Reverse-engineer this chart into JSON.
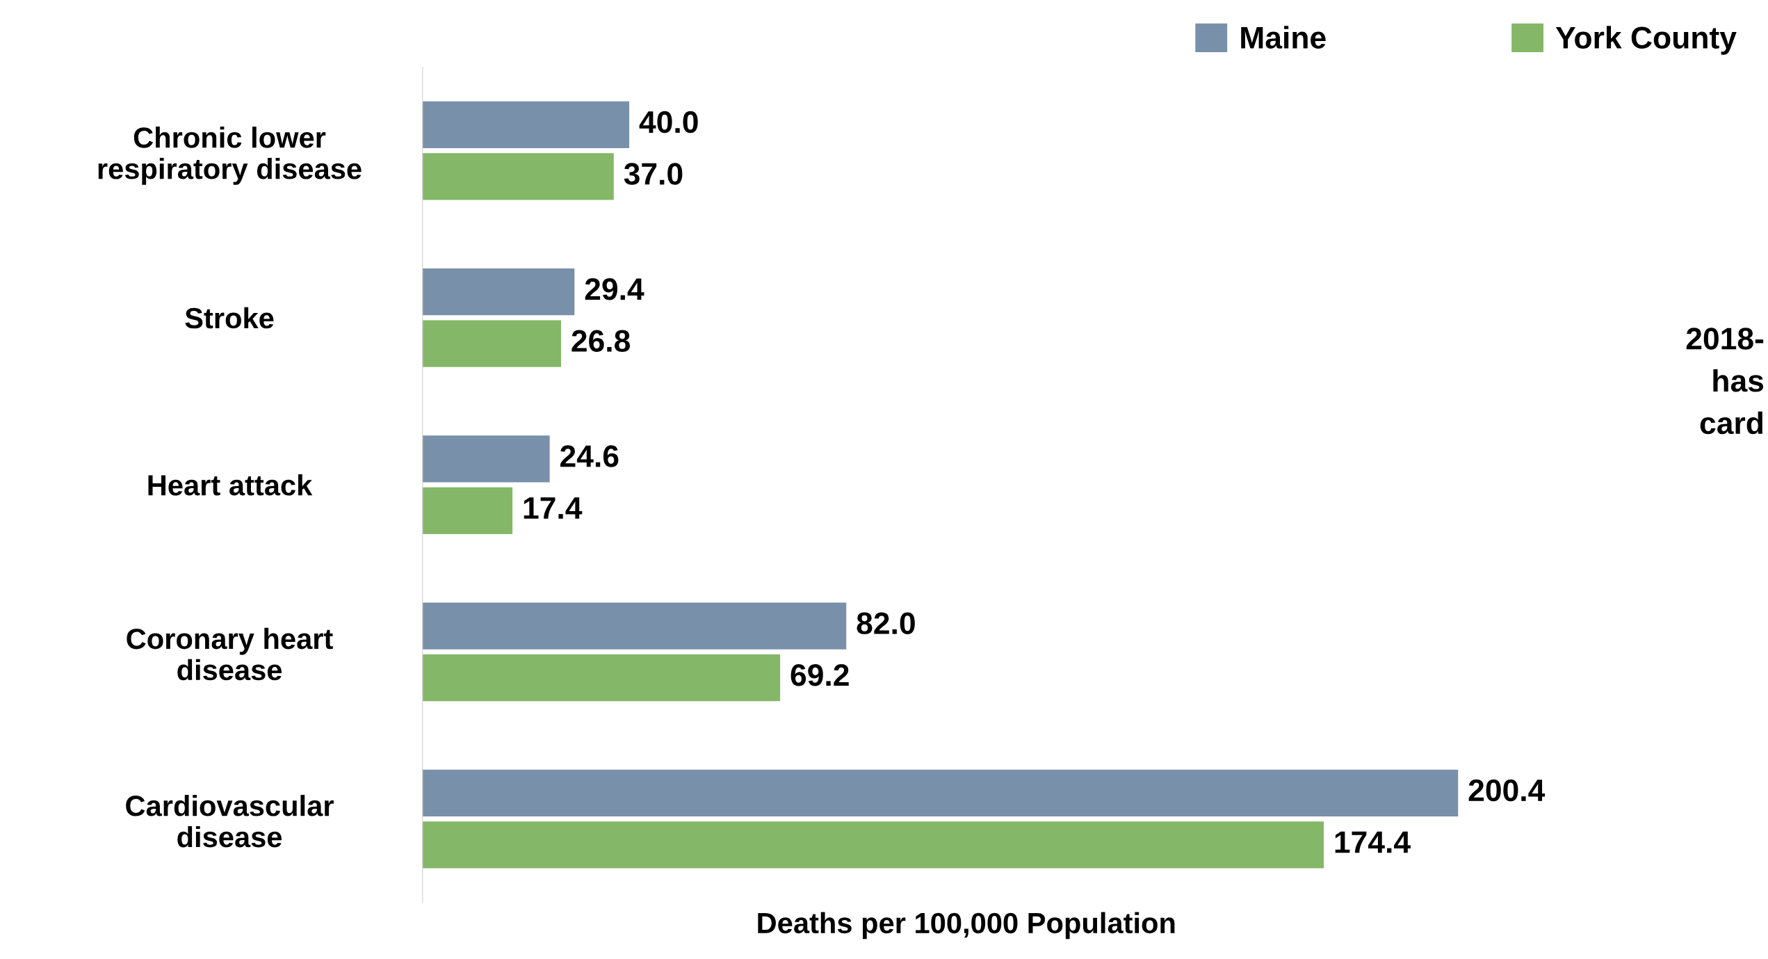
{
  "chart_data": {
    "type": "bar",
    "orientation": "horizontal",
    "xlabel": "Deaths per 100,000 Population",
    "categories": [
      "Chronic lower\nrespiratory disease",
      "Stroke",
      "Heart attack",
      "Coronary heart\ndisease",
      "Cardiovascular\ndisease"
    ],
    "series": [
      {
        "name": "Maine",
        "color": "#7890aa",
        "values": [
          40.0,
          29.4,
          24.6,
          82.0,
          200.4
        ],
        "value_labels": [
          "40.0",
          "29.4",
          "24.6",
          "82.0",
          "200.4"
        ]
      },
      {
        "name": "York County",
        "color": "#84b767",
        "values": [
          37.0,
          26.8,
          17.4,
          69.2,
          174.4
        ],
        "value_labels": [
          "37.0",
          "26.8",
          "17.4",
          "69.2",
          "174.4"
        ]
      }
    ],
    "legend": "top right",
    "grid": false,
    "tick_labels": "y",
    "annotations": [
      "2018-\nhas\ncard"
    ]
  }
}
